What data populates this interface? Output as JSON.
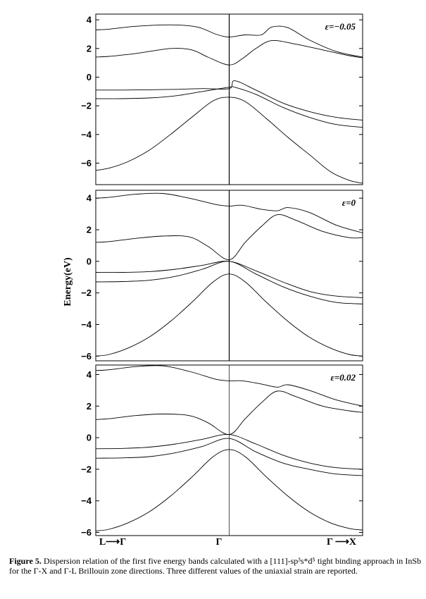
{
  "chart_data": [
    {
      "type": "line",
      "annotation": "ε=−0.05",
      "ylabel": "",
      "ylim": [
        -7.5,
        4.4
      ],
      "yticks": [
        4,
        2,
        0,
        -2,
        -4,
        -6
      ],
      "xlim": [
        0,
        1
      ],
      "series": [
        {
          "x": [
            0,
            0.05,
            0.15,
            0.28,
            0.38,
            0.45,
            0.5,
            0.56,
            0.62,
            0.66,
            0.72,
            0.8,
            0.9,
            1
          ],
          "values": [
            3.3,
            3.35,
            3.55,
            3.65,
            3.5,
            3.0,
            2.8,
            2.95,
            2.95,
            3.5,
            3.45,
            2.6,
            1.8,
            1.4
          ]
        },
        {
          "x": [
            0,
            0.05,
            0.15,
            0.28,
            0.36,
            0.42,
            0.5,
            0.55,
            0.6,
            0.66,
            0.75,
            0.85,
            0.95,
            1
          ],
          "values": [
            1.4,
            1.45,
            1.65,
            2.0,
            1.9,
            1.4,
            0.85,
            1.3,
            2.0,
            2.55,
            2.3,
            1.9,
            1.5,
            1.35
          ]
        },
        {
          "x": [
            0,
            0.1,
            0.2,
            0.3,
            0.4,
            0.5,
            0.52,
            0.6,
            0.7,
            0.8,
            0.9,
            1
          ],
          "values": [
            -0.9,
            -0.9,
            -0.88,
            -0.85,
            -0.8,
            -0.8,
            -0.25,
            -0.9,
            -1.8,
            -2.4,
            -2.8,
            -3.0
          ]
        },
        {
          "x": [
            0,
            0.1,
            0.2,
            0.3,
            0.4,
            0.5,
            0.52,
            0.6,
            0.7,
            0.8,
            0.9,
            1
          ],
          "values": [
            -1.5,
            -1.5,
            -1.45,
            -1.3,
            -1.0,
            -0.7,
            -0.7,
            -1.2,
            -2.1,
            -2.8,
            -3.3,
            -3.5
          ]
        },
        {
          "x": [
            0,
            0.05,
            0.12,
            0.2,
            0.28,
            0.36,
            0.44,
            0.5,
            0.56,
            0.64,
            0.72,
            0.8,
            0.88,
            0.95,
            1
          ],
          "values": [
            -6.5,
            -6.35,
            -5.9,
            -5.1,
            -4.0,
            -2.8,
            -1.65,
            -1.4,
            -1.7,
            -2.9,
            -4.2,
            -5.4,
            -6.6,
            -7.2,
            -7.4
          ]
        }
      ]
    },
    {
      "type": "line",
      "annotation": "ε=0",
      "ylabel": "Energy(eV)",
      "ylim": [
        -6.3,
        4.5
      ],
      "yticks": [
        4,
        2,
        0,
        -2,
        -4,
        -6
      ],
      "xlim": [
        0,
        1
      ],
      "series": [
        {
          "x": [
            0,
            0.05,
            0.15,
            0.25,
            0.35,
            0.45,
            0.5,
            0.55,
            0.62,
            0.68,
            0.72,
            0.8,
            0.9,
            1
          ],
          "values": [
            4.0,
            4.05,
            4.25,
            4.3,
            4.0,
            3.6,
            3.5,
            3.55,
            3.3,
            3.2,
            3.4,
            3.1,
            2.3,
            1.8
          ]
        },
        {
          "x": [
            0,
            0.05,
            0.15,
            0.25,
            0.35,
            0.42,
            0.5,
            0.56,
            0.62,
            0.68,
            0.75,
            0.85,
            0.95,
            1
          ],
          "values": [
            1.2,
            1.25,
            1.45,
            1.6,
            1.55,
            0.95,
            0.1,
            1.2,
            2.2,
            2.95,
            2.6,
            1.9,
            1.5,
            1.5
          ]
        },
        {
          "x": [
            0,
            0.1,
            0.2,
            0.3,
            0.4,
            0.5,
            0.6,
            0.7,
            0.8,
            0.9,
            1
          ],
          "values": [
            -0.7,
            -0.7,
            -0.65,
            -0.5,
            -0.25,
            0.0,
            -0.6,
            -1.3,
            -1.9,
            -2.2,
            -2.3
          ]
        },
        {
          "x": [
            0,
            0.1,
            0.2,
            0.3,
            0.4,
            0.5,
            0.6,
            0.7,
            0.8,
            0.9,
            1
          ],
          "values": [
            -1.3,
            -1.28,
            -1.2,
            -0.95,
            -0.5,
            0.0,
            -0.8,
            -1.6,
            -2.2,
            -2.6,
            -2.7
          ]
        },
        {
          "x": [
            0,
            0.05,
            0.12,
            0.2,
            0.28,
            0.36,
            0.44,
            0.5,
            0.56,
            0.64,
            0.72,
            0.8,
            0.88,
            0.95,
            1
          ],
          "values": [
            -6.0,
            -5.9,
            -5.5,
            -4.8,
            -3.8,
            -2.6,
            -1.3,
            -0.8,
            -1.3,
            -2.6,
            -3.8,
            -4.8,
            -5.5,
            -5.9,
            -6.0
          ]
        }
      ]
    },
    {
      "type": "line",
      "annotation": "ε=0.02",
      "ylabel": "",
      "ylim": [
        -6.2,
        4.6
      ],
      "yticks": [
        4,
        2,
        0,
        -2,
        -4,
        -6
      ],
      "xlim": [
        0,
        1
      ],
      "series": [
        {
          "x": [
            0,
            0.05,
            0.15,
            0.25,
            0.35,
            0.45,
            0.5,
            0.55,
            0.62,
            0.68,
            0.72,
            0.8,
            0.9,
            1
          ],
          "values": [
            4.25,
            4.3,
            4.5,
            4.55,
            4.2,
            3.7,
            3.6,
            3.6,
            3.4,
            3.2,
            3.35,
            3.0,
            2.4,
            2.0
          ]
        },
        {
          "x": [
            0,
            0.05,
            0.15,
            0.25,
            0.35,
            0.42,
            0.5,
            0.56,
            0.62,
            0.68,
            0.75,
            0.85,
            0.95,
            1
          ],
          "values": [
            1.15,
            1.2,
            1.4,
            1.5,
            1.4,
            0.95,
            0.2,
            1.2,
            2.2,
            2.95,
            2.6,
            2.0,
            1.7,
            1.6
          ]
        },
        {
          "x": [
            0,
            0.1,
            0.2,
            0.3,
            0.4,
            0.5,
            0.6,
            0.7,
            0.8,
            0.9,
            1
          ],
          "values": [
            -0.7,
            -0.68,
            -0.6,
            -0.4,
            -0.1,
            0.2,
            -0.4,
            -1.1,
            -1.6,
            -1.9,
            -2.0
          ]
        },
        {
          "x": [
            0,
            0.1,
            0.2,
            0.3,
            0.4,
            0.5,
            0.6,
            0.7,
            0.8,
            0.9,
            1
          ],
          "values": [
            -1.3,
            -1.28,
            -1.2,
            -0.95,
            -0.55,
            -0.05,
            -0.9,
            -1.6,
            -2.0,
            -2.3,
            -2.4
          ]
        },
        {
          "x": [
            0,
            0.05,
            0.12,
            0.2,
            0.28,
            0.36,
            0.44,
            0.5,
            0.56,
            0.64,
            0.72,
            0.8,
            0.88,
            0.95,
            1
          ],
          "values": [
            -5.9,
            -5.8,
            -5.4,
            -4.7,
            -3.7,
            -2.5,
            -1.2,
            -0.75,
            -1.2,
            -2.5,
            -3.7,
            -4.7,
            -5.4,
            -5.75,
            -5.85
          ]
        }
      ]
    }
  ],
  "xticks": {
    "left": "L⟶Γ",
    "center": "Γ",
    "right": "Γ ⟶X"
  },
  "caption": {
    "label": "Figure 5.",
    "text": "Dispersion relation of the first five energy bands calculated with a [111]-sp³s*d⁵ tight binding approach in InSb for the Γ-X and Γ-L Brillouin zone directions. Three different values of the uniaxial strain are reported."
  }
}
